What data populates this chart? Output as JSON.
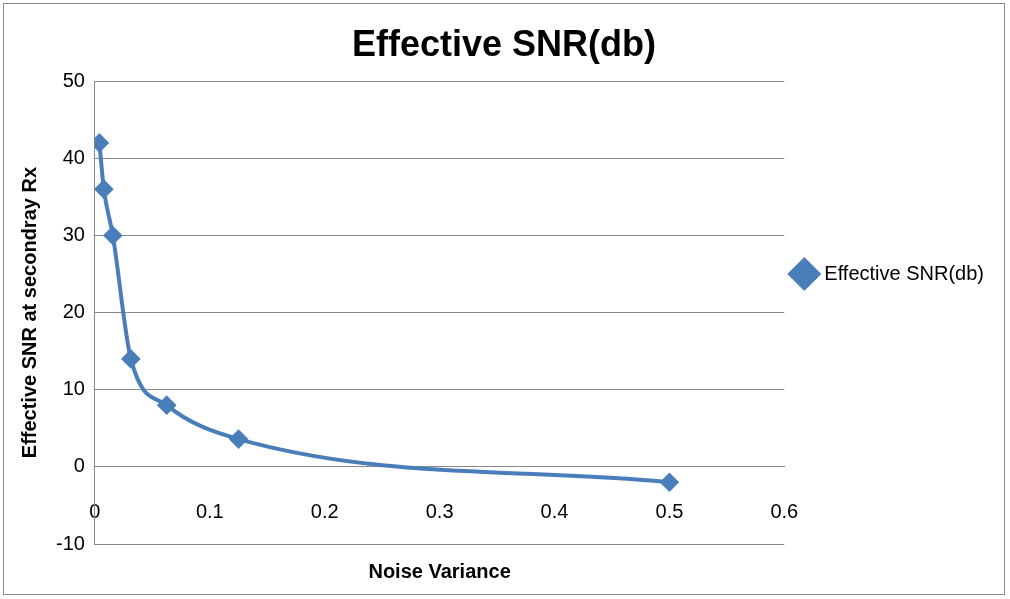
{
  "chart_data": {
    "type": "line",
    "title": "Effective SNR(db)",
    "xlabel": "Noise Variance",
    "ylabel": "Effective SNR at secondray Rx",
    "series": [
      {
        "name": "Effective SNR(db)",
        "color": "#4a7ebb",
        "x": [
          0.0039,
          0.0078,
          0.0156,
          0.0313,
          0.0625,
          0.125,
          0.5
        ],
        "values": [
          42,
          36,
          30,
          14,
          8,
          3.6,
          -2
        ]
      }
    ],
    "xlim": [
      0,
      0.6
    ],
    "xticks": [
      0,
      0.1,
      0.2,
      0.3,
      0.4,
      0.5,
      0.6
    ],
    "ylim": [
      -10,
      50
    ],
    "yticks": [
      -10,
      0,
      10,
      20,
      30,
      40,
      50
    ],
    "grid": "y",
    "legend": "right",
    "marker": "diamond",
    "line_style": "solid"
  }
}
